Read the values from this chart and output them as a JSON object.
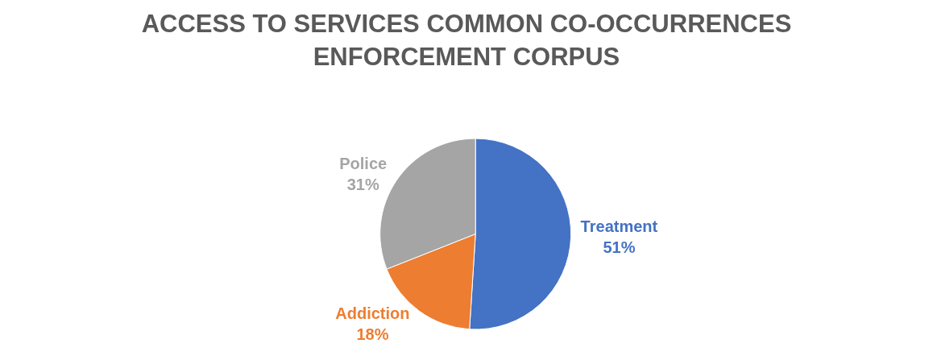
{
  "chart_data": {
    "type": "pie",
    "title": "ACCESS TO SERVICES COMMON CO-OCCURRENCES ENFORCEMENT CORPUS",
    "categories": [
      "Treatment",
      "Addiction",
      "Police"
    ],
    "values": [
      51,
      18,
      31
    ],
    "value_labels": [
      "51%",
      "18%",
      "31%"
    ],
    "colors": [
      "#4472c4",
      "#ed7d31",
      "#a5a5a5"
    ],
    "legend": false
  }
}
